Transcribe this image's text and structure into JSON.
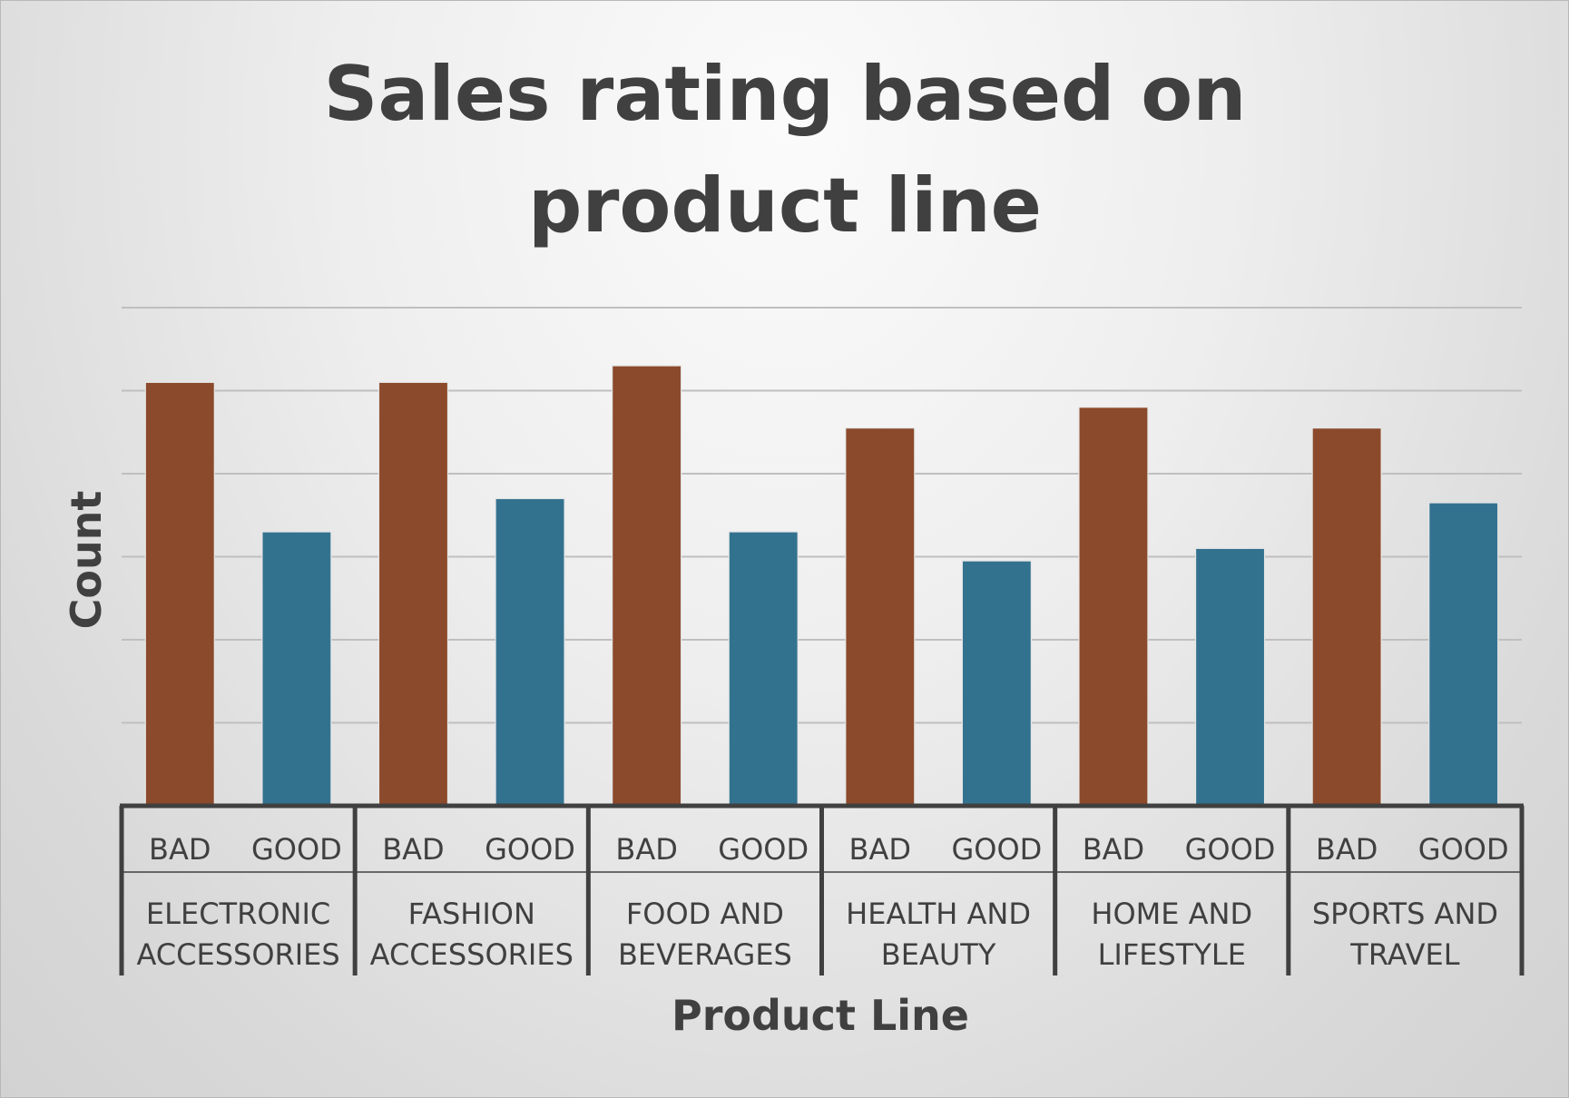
{
  "chart_data": {
    "type": "bar",
    "title": "Sales rating based on product line",
    "title_lines": [
      "Sales rating based on",
      "product line"
    ],
    "xlabel": "Product Line",
    "ylabel": "Count",
    "ylim": [
      0,
      60
    ],
    "y_gridlines": [
      10,
      20,
      30,
      40,
      50,
      60
    ],
    "y_tick_labels_shown": false,
    "grid": true,
    "legend": "none",
    "categories": [
      {
        "group": [
          "ELECTRONIC",
          "ACCESSORIES"
        ],
        "bars": [
          {
            "label": "BAD",
            "value": 51
          },
          {
            "label": "GOOD",
            "value": 33
          }
        ]
      },
      {
        "group": [
          "FASHION",
          "ACCESSORIES"
        ],
        "bars": [
          {
            "label": "BAD",
            "value": 51
          },
          {
            "label": "GOOD",
            "value": 37
          }
        ]
      },
      {
        "group": [
          "FOOD AND",
          "BEVERAGES"
        ],
        "bars": [
          {
            "label": "BAD",
            "value": 53
          },
          {
            "label": "GOOD",
            "value": 33
          }
        ]
      },
      {
        "group": [
          "HEALTH AND",
          "BEAUTY"
        ],
        "bars": [
          {
            "label": "BAD",
            "value": 45.5
          },
          {
            "label": "GOOD",
            "value": 29.5
          }
        ]
      },
      {
        "group": [
          "HOME AND",
          "LIFESTYLE"
        ],
        "bars": [
          {
            "label": "BAD",
            "value": 48
          },
          {
            "label": "GOOD",
            "value": 31
          }
        ]
      },
      {
        "group": [
          "SPORTS AND",
          "TRAVEL"
        ],
        "bars": [
          {
            "label": "BAD",
            "value": 45.5
          },
          {
            "label": "GOOD",
            "value": 36.5
          }
        ]
      }
    ],
    "colors": {
      "BAD": "#8b4a2b",
      "GOOD": "#33728f"
    }
  }
}
